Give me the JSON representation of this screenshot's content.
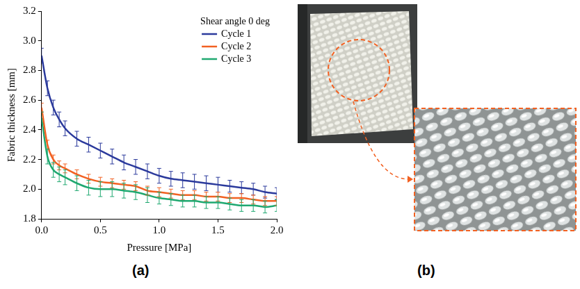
{
  "chart_data": {
    "type": "line",
    "panel_label": "(a)",
    "x_label": "Pressure [MPa]",
    "y_label": "Fabric thickness [mm]",
    "legend_title": "Shear angle 0 deg",
    "legend": "upper right",
    "grid": false,
    "x": [
      0,
      0.05,
      0.1,
      0.15,
      0.2,
      0.3,
      0.4,
      0.5,
      0.6,
      0.7,
      0.8,
      0.9,
      1.0,
      1.1,
      1.2,
      1.3,
      1.4,
      1.5,
      1.6,
      1.7,
      1.8,
      1.9,
      2.0
    ],
    "series": [
      {
        "name": "Cycle 1",
        "color": "#2b3a9c",
        "values": [
          2.9,
          2.68,
          2.55,
          2.47,
          2.41,
          2.34,
          2.3,
          2.26,
          2.22,
          2.18,
          2.15,
          2.12,
          2.09,
          2.07,
          2.06,
          2.05,
          2.04,
          2.03,
          2.02,
          2.01,
          2.0,
          1.98,
          1.97
        ],
        "errors": [
          0.05,
          0.05,
          0.05,
          0.05,
          0.05,
          0.05,
          0.05,
          0.05,
          0.05,
          0.05,
          0.05,
          0.05,
          0.05,
          0.05,
          0.05,
          0.05,
          0.05,
          0.05,
          0.04,
          0.04,
          0.04,
          0.04,
          0.04
        ]
      },
      {
        "name": "Cycle 2",
        "color": "#f26122",
        "values": [
          2.55,
          2.3,
          2.2,
          2.16,
          2.14,
          2.1,
          2.07,
          2.05,
          2.04,
          2.03,
          2.02,
          1.99,
          1.98,
          1.97,
          1.96,
          1.96,
          1.95,
          1.95,
          1.94,
          1.94,
          1.93,
          1.92,
          1.92
        ],
        "errors": [
          0.03,
          0.03,
          0.03,
          0.03,
          0.03,
          0.03,
          0.03,
          0.03,
          0.03,
          0.03,
          0.03,
          0.03,
          0.03,
          0.03,
          0.03,
          0.03,
          0.03,
          0.03,
          0.03,
          0.03,
          0.03,
          0.03,
          0.03
        ]
      },
      {
        "name": "Cycle 3",
        "color": "#1fa870",
        "values": [
          2.48,
          2.22,
          2.13,
          2.1,
          2.08,
          2.04,
          2.01,
          2.0,
          2.0,
          1.99,
          1.98,
          1.96,
          1.94,
          1.93,
          1.92,
          1.92,
          1.91,
          1.91,
          1.9,
          1.89,
          1.89,
          1.88,
          1.89
        ],
        "errors": [
          0.04,
          0.05,
          0.05,
          0.05,
          0.05,
          0.05,
          0.05,
          0.05,
          0.05,
          0.05,
          0.05,
          0.05,
          0.04,
          0.04,
          0.04,
          0.04,
          0.04,
          0.04,
          0.04,
          0.04,
          0.04,
          0.04,
          0.04
        ]
      }
    ],
    "xlim": [
      0,
      2
    ],
    "xticks": [
      {
        "value": 0,
        "label": "0.0"
      },
      0.5,
      {
        "value": 1,
        "label": "1.0"
      },
      1.5,
      {
        "value": 2,
        "label": "2.0"
      }
    ],
    "ylim": [
      1.8,
      3.2
    ],
    "yticks": [
      1.8,
      {
        "value": 2,
        "label": "2.0"
      },
      2.2,
      2.4,
      2.6,
      2.8,
      {
        "value": 3,
        "label": "3.0"
      },
      3.2
    ]
  },
  "photo_panel": {
    "label": "(b)"
  }
}
